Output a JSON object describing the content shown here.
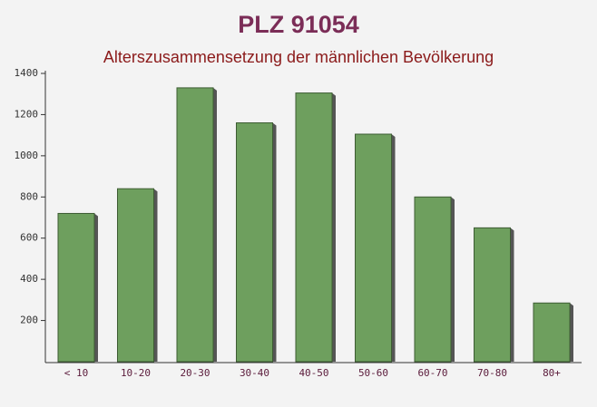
{
  "chart_data": {
    "type": "bar",
    "title": "PLZ 91054",
    "subtitle": "Alterszusammensetzung der männlichen Bevölkerung",
    "categories": [
      "< 10",
      "10-20",
      "20-30",
      "30-40",
      "40-50",
      "50-60",
      "60-70",
      "70-80",
      "80+"
    ],
    "values": [
      720,
      840,
      1330,
      1160,
      1305,
      1105,
      800,
      650,
      285
    ],
    "color": "#6e9f5e",
    "ylim": [
      0,
      1400
    ],
    "yticks": [
      200,
      400,
      600,
      800,
      1000,
      1200,
      1400
    ],
    "grid": false
  }
}
